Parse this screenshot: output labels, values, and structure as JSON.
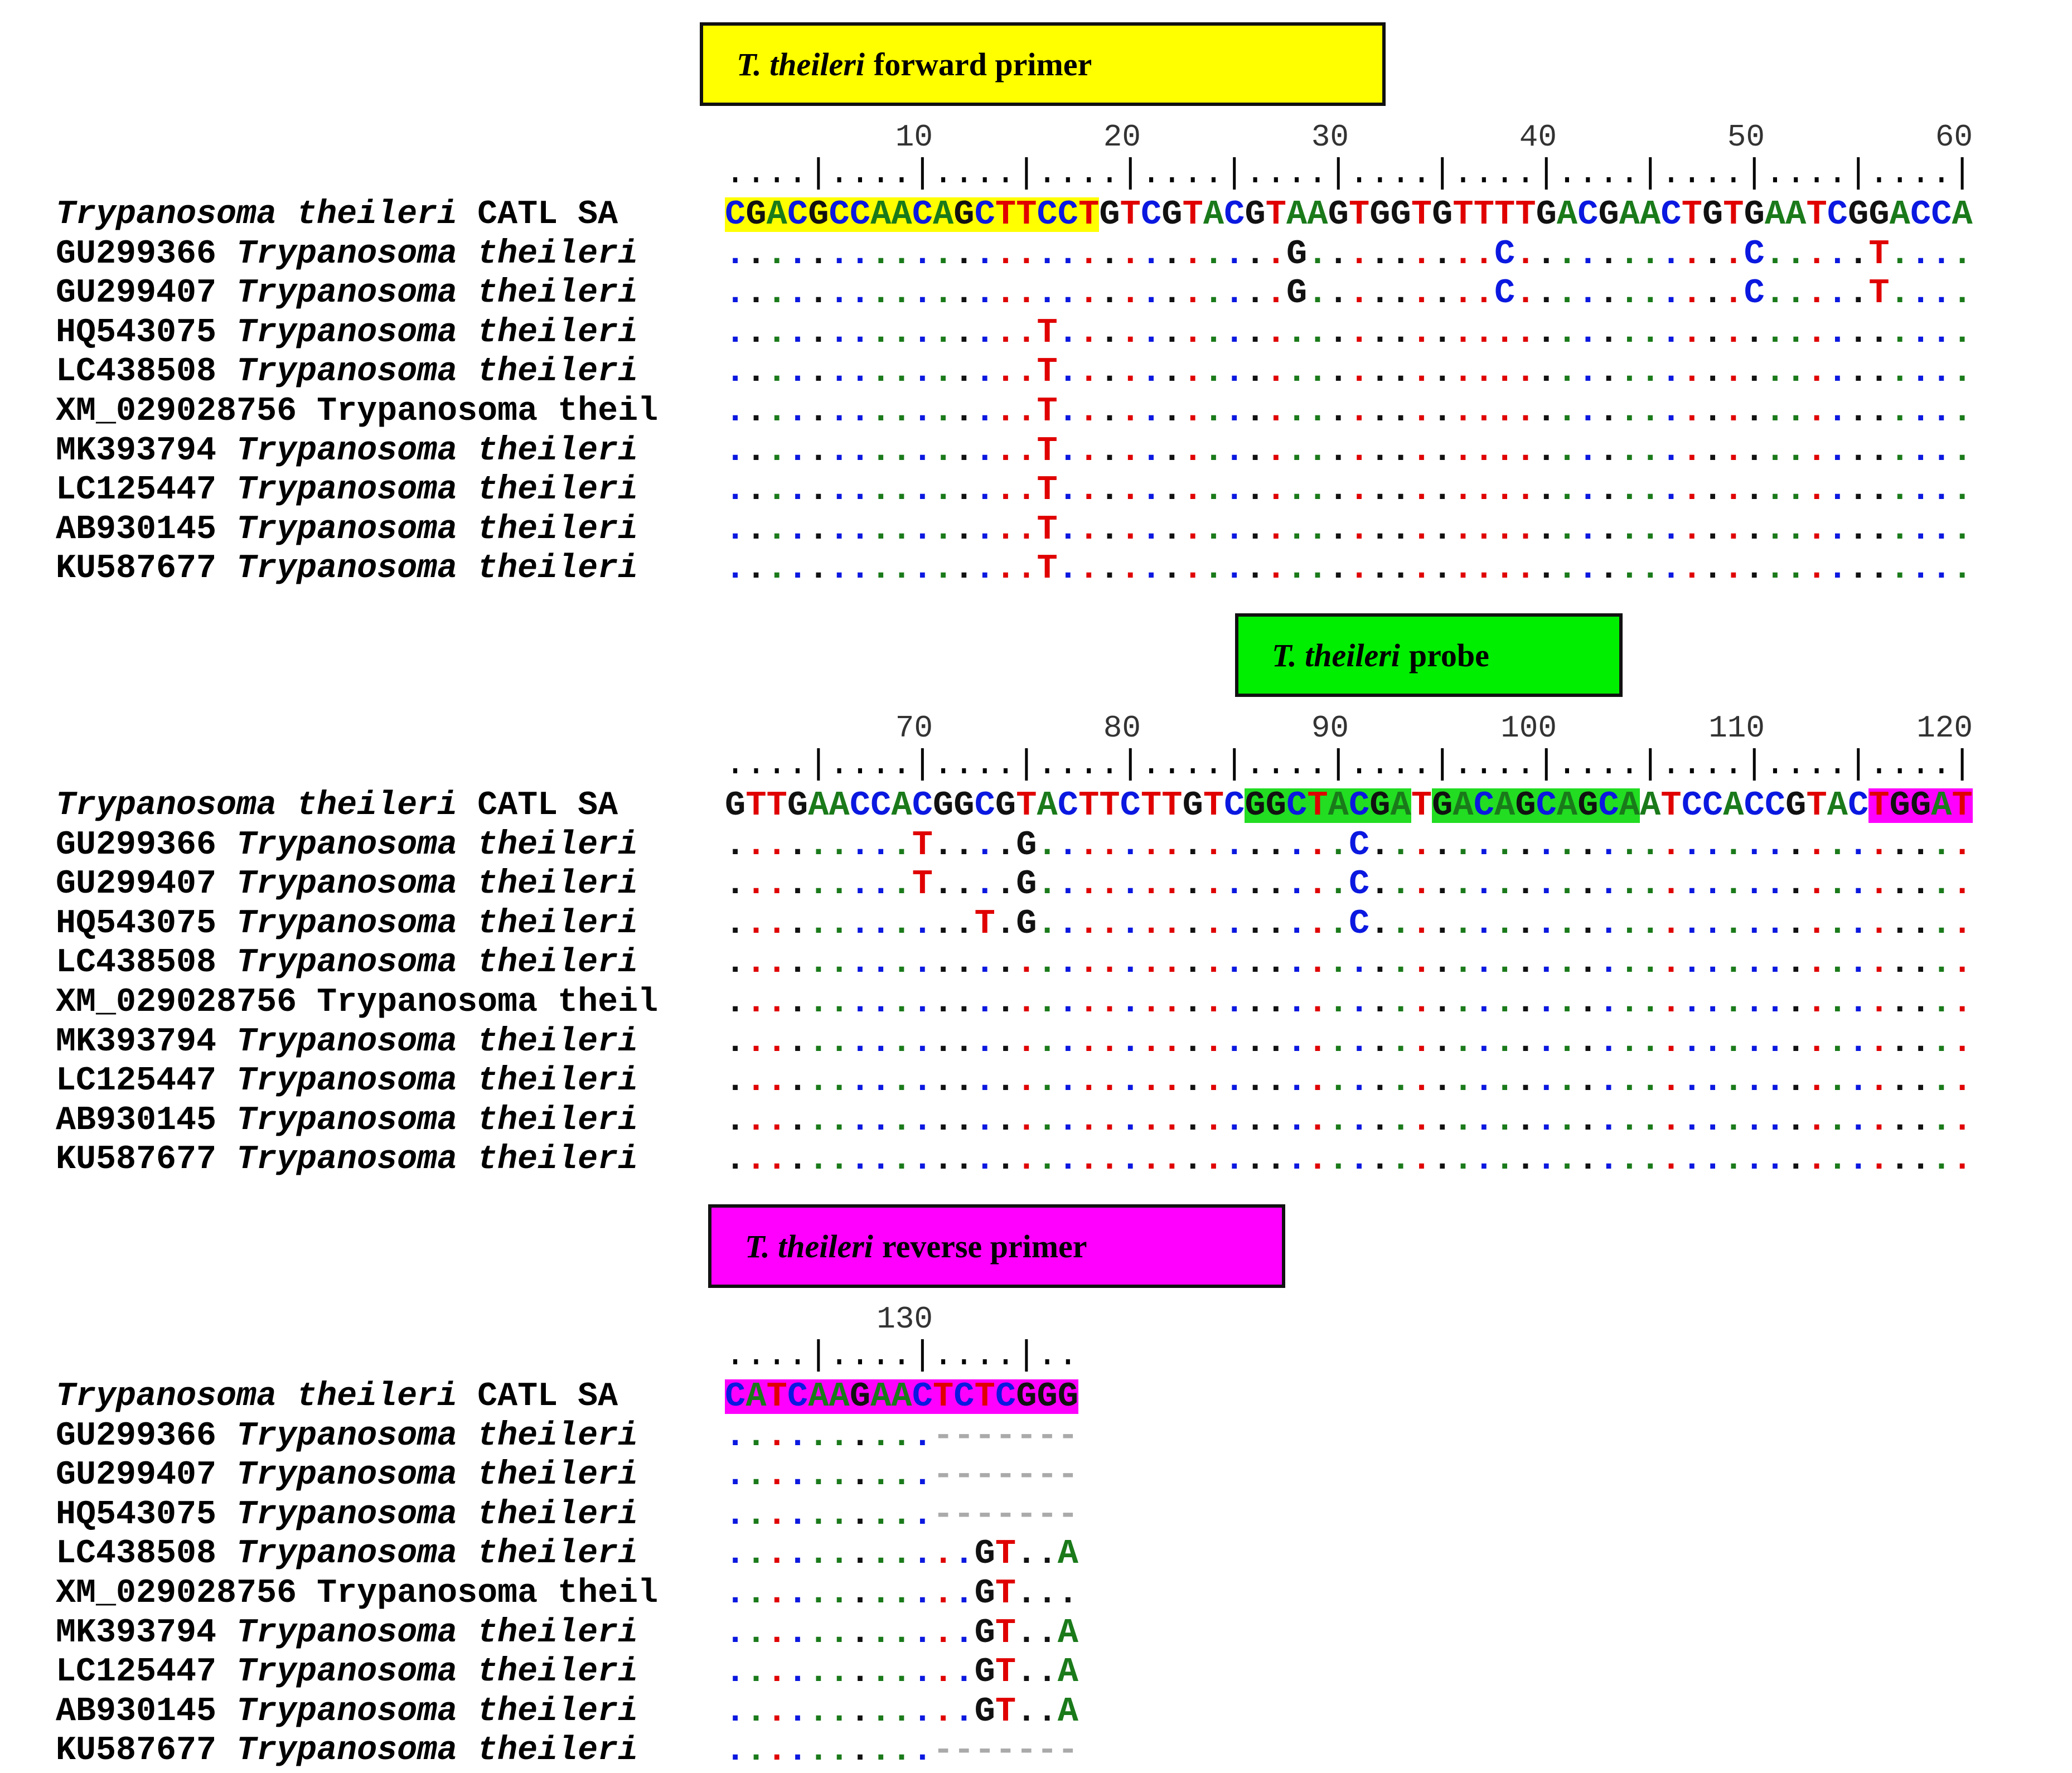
{
  "blocks": [
    {
      "label": {
        "italic": "T. theileri",
        "text": "forward primer",
        "color": "#ffff00"
      },
      "ruler_numbers": [
        "10",
        "20",
        "30",
        "40",
        "50",
        "60"
      ],
      "ruler_ticks": "....|....|....|....|....|....|....|....|....|....|....|....|",
      "reference": {
        "name_italic": "Trypanosoma theileri",
        "name_plain": " CATL SA",
        "sequence": "CGACGCCAACAGCTTCCTGTCGTACGTAAGTGGTGTTTTGACGAACTGTGAATCGGACCA",
        "highlights": [
          {
            "from": 0,
            "to": 18,
            "color": "yellow"
          }
        ]
      },
      "rows": [
        {
          "acc": "GU299366 ",
          "italic": "Trypanosoma theileri",
          "plain": "",
          "seq": "...........................G.........C...........C.....T...."
        },
        {
          "acc": "GU299407 ",
          "italic": "Trypanosoma theileri",
          "plain": "",
          "seq": "...........................G.........C...........C.....T...."
        },
        {
          "acc": "HQ543075 ",
          "italic": "Trypanosoma theileri",
          "plain": "",
          "seq": "...............T............................................"
        },
        {
          "acc": "LC438508 ",
          "italic": "Trypanosoma theileri",
          "plain": "",
          "seq": "...............T............................................"
        },
        {
          "acc": "XM_029028756 Trypanosoma theil",
          "italic": "",
          "plain": "",
          "seq": "...............T............................................"
        },
        {
          "acc": "MK393794 ",
          "italic": "Trypanosoma theileri",
          "plain": "",
          "seq": "...............T............................................"
        },
        {
          "acc": "LC125447 ",
          "italic": "Trypanosoma theileri",
          "plain": "",
          "seq": "...............T............................................"
        },
        {
          "acc": "AB930145 ",
          "italic": "Trypanosoma theileri",
          "plain": "",
          "seq": "...............T............................................"
        },
        {
          "acc": "KU587677 ",
          "italic": "Trypanosoma theileri",
          "plain": "",
          "seq": "...............T............................................"
        }
      ]
    },
    {
      "label": {
        "italic": "T. theileri",
        "text": "probe",
        "color": "#00ee00"
      },
      "ruler_numbers": [
        "70",
        "80",
        "90",
        "100",
        "110",
        "120"
      ],
      "ruler_ticks": "....|....|....|....|....|....|....|....|....|....|....|....|",
      "reference": {
        "name_italic": "Trypanosoma theileri",
        "name_plain": " CATL SA",
        "sequence": "GTTGAACCACGGCGTACTTCTTGTCGGCTACGATGACAGCAGCAATCCACCGTACTGGAT",
        "highlights": [
          {
            "from": 25,
            "to": 33,
            "color": "green"
          },
          {
            "from": 34,
            "to": 44,
            "color": "green"
          },
          {
            "from": 55,
            "to": 60,
            "color": "magenta"
          }
        ]
      },
      "rows": [
        {
          "acc": "GU299366 ",
          "italic": "Trypanosoma theileri",
          "plain": "",
          "seq": ".........T....G...............C............................."
        },
        {
          "acc": "GU299407 ",
          "italic": "Trypanosoma theileri",
          "plain": "",
          "seq": ".........T....G...............C............................."
        },
        {
          "acc": "HQ543075 ",
          "italic": "Trypanosoma theileri",
          "plain": "",
          "seq": "............T.G...............C............................."
        },
        {
          "acc": "LC438508 ",
          "italic": "Trypanosoma theileri",
          "plain": "",
          "seq": "............................................................"
        },
        {
          "acc": "XM_029028756 Trypanosoma theil",
          "italic": "",
          "plain": "",
          "seq": "............................................................"
        },
        {
          "acc": "MK393794 ",
          "italic": "Trypanosoma theileri",
          "plain": "",
          "seq": "............................................................"
        },
        {
          "acc": "LC125447 ",
          "italic": "Trypanosoma theileri",
          "plain": "",
          "seq": "............................................................"
        },
        {
          "acc": "AB930145 ",
          "italic": "Trypanosoma theileri",
          "plain": "",
          "seq": "............................................................"
        },
        {
          "acc": "KU587677 ",
          "italic": "Trypanosoma theileri",
          "plain": "",
          "seq": "............................................................"
        }
      ]
    },
    {
      "label": {
        "italic": "T. theileri",
        "text": "reverse primer",
        "color": "#ff00ff"
      },
      "ruler_numbers": [
        "130"
      ],
      "ruler_ticks": "....|....|....|..",
      "reference": {
        "name_italic": "Trypanosoma theileri",
        "name_plain": " CATL SA",
        "sequence": "CATCAAGAACTCTCGGG",
        "highlights": [
          {
            "from": 0,
            "to": 17,
            "color": "magenta"
          }
        ]
      },
      "rows": [
        {
          "acc": "GU299366 ",
          "italic": "Trypanosoma theileri",
          "plain": "",
          "seq": "..........-------"
        },
        {
          "acc": "GU299407 ",
          "italic": "Trypanosoma theileri",
          "plain": "",
          "seq": "..........-------"
        },
        {
          "acc": "HQ543075 ",
          "italic": "Trypanosoma theileri",
          "plain": "",
          "seq": "..........-------"
        },
        {
          "acc": "LC438508 ",
          "italic": "Trypanosoma theileri",
          "plain": "",
          "seq": "............GT..A"
        },
        {
          "acc": "XM_029028756 Trypanosoma theil",
          "italic": "",
          "plain": "",
          "seq": "............GT..."
        },
        {
          "acc": "MK393794 ",
          "italic": "Trypanosoma theileri",
          "plain": "",
          "seq": "............GT..A"
        },
        {
          "acc": "LC125447 ",
          "italic": "Trypanosoma theileri",
          "plain": "",
          "seq": "............GT..A"
        },
        {
          "acc": "AB930145 ",
          "italic": "Trypanosoma theileri",
          "plain": "",
          "seq": "............GT..A"
        },
        {
          "acc": "KU587677 ",
          "italic": "Trypanosoma theileri",
          "plain": "",
          "seq": "..........-------"
        }
      ]
    }
  ]
}
